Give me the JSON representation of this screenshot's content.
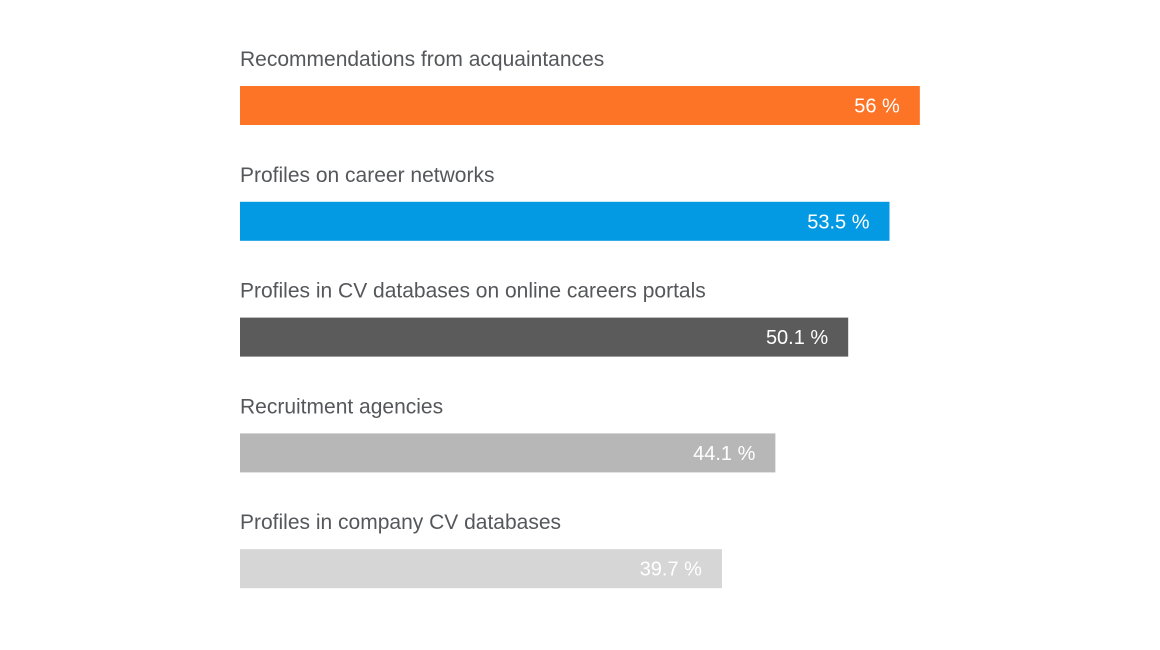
{
  "chart_data": {
    "type": "bar",
    "orientation": "horizontal",
    "unit": "%",
    "categories": [
      "Recommendations from acquaintances",
      "Profiles on career networks",
      "Profiles in CV databases on online careers portals",
      "Recruitment agencies",
      "Profiles in company CV databases"
    ],
    "values": [
      56,
      53.5,
      50.1,
      44.1,
      39.7
    ],
    "value_labels": [
      "56 %",
      "53.5 %",
      "50.1 %",
      "44.1 %",
      "39.7 %"
    ],
    "colors": [
      "#fd7426",
      "#0499e3",
      "#5b5b5b",
      "#b7b7b7",
      "#d6d6d6"
    ],
    "xlim": [
      0,
      100
    ],
    "grid": false,
    "legend": "none"
  }
}
